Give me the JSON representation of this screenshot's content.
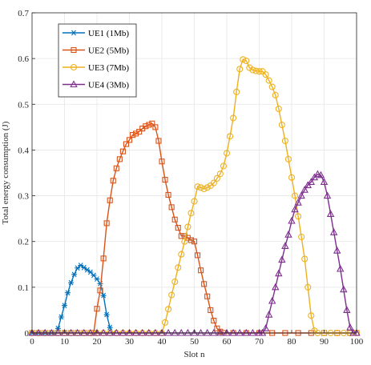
{
  "chart_data": {
    "type": "line",
    "xlabel": "Slot n",
    "ylabel": "Total energy consumption (J)",
    "xlim": [
      0,
      100
    ],
    "ylim": [
      0,
      0.7
    ],
    "xticks": [
      0,
      10,
      20,
      30,
      40,
      50,
      60,
      70,
      80,
      90,
      100
    ],
    "yticks": [
      0,
      0.1,
      0.2,
      0.3,
      0.4,
      0.5,
      0.6,
      0.7
    ],
    "grid": true,
    "legend_position": "top-left",
    "series": [
      {
        "name": "UE1 (1Mb)",
        "color": "#0072BD",
        "marker": "asterisk",
        "points": [
          [
            0,
            0
          ],
          [
            1,
            0
          ],
          [
            2,
            0
          ],
          [
            3,
            0
          ],
          [
            4,
            0
          ],
          [
            5,
            0
          ],
          [
            6,
            0
          ],
          [
            7,
            0
          ],
          [
            8,
            0.01
          ],
          [
            9,
            0.035
          ],
          [
            10,
            0.06
          ],
          [
            11,
            0.088
          ],
          [
            12,
            0.11
          ],
          [
            13,
            0.128
          ],
          [
            14,
            0.142
          ],
          [
            15,
            0.148
          ],
          [
            16,
            0.143
          ],
          [
            17,
            0.138
          ],
          [
            18,
            0.133
          ],
          [
            19,
            0.126
          ],
          [
            20,
            0.118
          ],
          [
            21,
            0.108
          ],
          [
            22,
            0.082
          ],
          [
            23,
            0.04
          ],
          [
            24,
            0.012
          ],
          [
            25,
            0
          ]
        ]
      },
      {
        "name": "UE2 (5Mb)",
        "color": "#D95319",
        "marker": "square",
        "points": [
          [
            0,
            0
          ],
          [
            2,
            0
          ],
          [
            4,
            0
          ],
          [
            6,
            0
          ],
          [
            8,
            0
          ],
          [
            10,
            0
          ],
          [
            12,
            0
          ],
          [
            14,
            0
          ],
          [
            16,
            0
          ],
          [
            18,
            0
          ],
          [
            19,
            0
          ],
          [
            20,
            0.053
          ],
          [
            21,
            0.093
          ],
          [
            22,
            0.163
          ],
          [
            23,
            0.24
          ],
          [
            24,
            0.29
          ],
          [
            25,
            0.333
          ],
          [
            26,
            0.36
          ],
          [
            27,
            0.38
          ],
          [
            28,
            0.397
          ],
          [
            29,
            0.413
          ],
          [
            30,
            0.422
          ],
          [
            31,
            0.433
          ],
          [
            32,
            0.436
          ],
          [
            33,
            0.44
          ],
          [
            34,
            0.447
          ],
          [
            35,
            0.452
          ],
          [
            36,
            0.455
          ],
          [
            37,
            0.458
          ],
          [
            38,
            0.45
          ],
          [
            39,
            0.42
          ],
          [
            40,
            0.375
          ],
          [
            41,
            0.335
          ],
          [
            42,
            0.302
          ],
          [
            43,
            0.275
          ],
          [
            44,
            0.248
          ],
          [
            45,
            0.23
          ],
          [
            46,
            0.212
          ],
          [
            47,
            0.212
          ],
          [
            48,
            0.208
          ],
          [
            49,
            0.203
          ],
          [
            50,
            0.2
          ],
          [
            51,
            0.17
          ],
          [
            52,
            0.137
          ],
          [
            53,
            0.107
          ],
          [
            54,
            0.08
          ],
          [
            55,
            0.05
          ],
          [
            56,
            0.027
          ],
          [
            57,
            0.01
          ],
          [
            58,
            0.003
          ],
          [
            59,
            0
          ],
          [
            62,
            0
          ],
          [
            66,
            0
          ],
          [
            70,
            0
          ],
          [
            74,
            0
          ],
          [
            78,
            0
          ],
          [
            82,
            0
          ],
          [
            86,
            0
          ],
          [
            90,
            0
          ],
          [
            94,
            0
          ],
          [
            98,
            0
          ],
          [
            100,
            0
          ]
        ]
      },
      {
        "name": "UE3 (7Mb)",
        "color": "#EDB120",
        "marker": "circle",
        "points": [
          [
            0,
            0
          ],
          [
            2,
            0
          ],
          [
            4,
            0
          ],
          [
            6,
            0
          ],
          [
            8,
            0
          ],
          [
            10,
            0
          ],
          [
            12,
            0
          ],
          [
            14,
            0
          ],
          [
            16,
            0
          ],
          [
            18,
            0
          ],
          [
            20,
            0
          ],
          [
            22,
            0
          ],
          [
            24,
            0
          ],
          [
            26,
            0
          ],
          [
            28,
            0
          ],
          [
            30,
            0
          ],
          [
            32,
            0
          ],
          [
            34,
            0
          ],
          [
            36,
            0
          ],
          [
            38,
            0
          ],
          [
            40,
            0
          ],
          [
            41,
            0.023
          ],
          [
            42,
            0.052
          ],
          [
            43,
            0.083
          ],
          [
            44,
            0.112
          ],
          [
            45,
            0.143
          ],
          [
            46,
            0.172
          ],
          [
            47,
            0.2
          ],
          [
            48,
            0.232
          ],
          [
            49,
            0.262
          ],
          [
            50,
            0.288
          ],
          [
            51,
            0.32
          ],
          [
            52,
            0.318
          ],
          [
            53,
            0.315
          ],
          [
            54,
            0.318
          ],
          [
            55,
            0.322
          ],
          [
            56,
            0.328
          ],
          [
            57,
            0.338
          ],
          [
            58,
            0.348
          ],
          [
            59,
            0.365
          ],
          [
            60,
            0.393
          ],
          [
            61,
            0.43
          ],
          [
            62,
            0.47
          ],
          [
            63,
            0.527
          ],
          [
            64,
            0.577
          ],
          [
            65,
            0.598
          ],
          [
            66,
            0.595
          ],
          [
            67,
            0.58
          ],
          [
            68,
            0.575
          ],
          [
            69,
            0.573
          ],
          [
            70,
            0.572
          ],
          [
            71,
            0.572
          ],
          [
            72,
            0.565
          ],
          [
            73,
            0.552
          ],
          [
            74,
            0.538
          ],
          [
            75,
            0.52
          ],
          [
            76,
            0.49
          ],
          [
            77,
            0.455
          ],
          [
            78,
            0.42
          ],
          [
            79,
            0.38
          ],
          [
            80,
            0.34
          ],
          [
            81,
            0.3
          ],
          [
            82,
            0.255
          ],
          [
            83,
            0.21
          ],
          [
            84,
            0.162
          ],
          [
            85,
            0.1
          ],
          [
            86,
            0.038
          ],
          [
            87,
            0.005
          ],
          [
            88,
            0
          ],
          [
            90,
            0
          ],
          [
            92,
            0
          ],
          [
            94,
            0
          ],
          [
            96,
            0
          ],
          [
            98,
            0
          ],
          [
            100,
            0
          ]
        ]
      },
      {
        "name": "UE4 (3Mb)",
        "color": "#7E2F8E",
        "marker": "triangle",
        "points": [
          [
            0,
            0
          ],
          [
            2,
            0
          ],
          [
            4,
            0
          ],
          [
            6,
            0
          ],
          [
            8,
            0
          ],
          [
            10,
            0
          ],
          [
            12,
            0
          ],
          [
            14,
            0
          ],
          [
            16,
            0
          ],
          [
            18,
            0
          ],
          [
            20,
            0
          ],
          [
            22,
            0
          ],
          [
            24,
            0
          ],
          [
            26,
            0
          ],
          [
            28,
            0
          ],
          [
            30,
            0
          ],
          [
            32,
            0
          ],
          [
            34,
            0
          ],
          [
            36,
            0
          ],
          [
            38,
            0
          ],
          [
            40,
            0
          ],
          [
            42,
            0
          ],
          [
            44,
            0
          ],
          [
            46,
            0
          ],
          [
            48,
            0
          ],
          [
            50,
            0
          ],
          [
            52,
            0
          ],
          [
            54,
            0
          ],
          [
            56,
            0
          ],
          [
            58,
            0
          ],
          [
            60,
            0
          ],
          [
            62,
            0
          ],
          [
            64,
            0
          ],
          [
            66,
            0
          ],
          [
            68,
            0
          ],
          [
            70,
            0
          ],
          [
            71,
            0
          ],
          [
            72,
            0.01
          ],
          [
            73,
            0.04
          ],
          [
            74,
            0.07
          ],
          [
            75,
            0.1
          ],
          [
            76,
            0.13
          ],
          [
            77,
            0.16
          ],
          [
            78,
            0.19
          ],
          [
            79,
            0.215
          ],
          [
            80,
            0.245
          ],
          [
            81,
            0.27
          ],
          [
            82,
            0.285
          ],
          [
            83,
            0.3
          ],
          [
            84,
            0.313
          ],
          [
            85,
            0.323
          ],
          [
            86,
            0.33
          ],
          [
            87,
            0.34
          ],
          [
            88,
            0.347
          ],
          [
            89,
            0.345
          ],
          [
            90,
            0.33
          ],
          [
            91,
            0.3
          ],
          [
            92,
            0.26
          ],
          [
            93,
            0.22
          ],
          [
            94,
            0.18
          ],
          [
            95,
            0.14
          ],
          [
            96,
            0.095
          ],
          [
            97,
            0.05
          ],
          [
            98,
            0.012
          ],
          [
            99,
            0
          ],
          [
            100,
            0
          ]
        ]
      }
    ]
  }
}
